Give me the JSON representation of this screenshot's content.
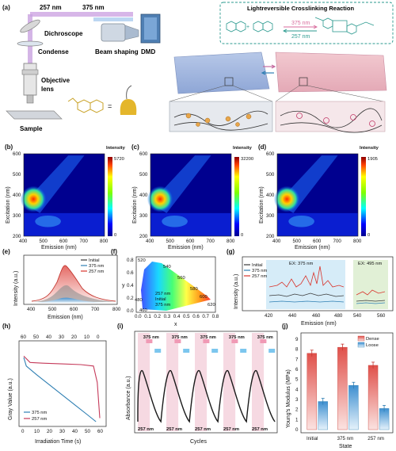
{
  "panel_a": {
    "label": "(a)",
    "wl_257": "257 nm",
    "wl_375": "375 nm",
    "dichroscope": "Dichroscope",
    "condense": "Condense",
    "beam_shaping": "Beam shaping",
    "dmd": "DMD",
    "objective_1": "Objective",
    "objective_2": "lens",
    "sample": "Sample",
    "equals": "=",
    "reaction_title": "Lightreversible Crosslinking Reaction",
    "reaction_375": "375 nm",
    "reaction_257": "257 nm",
    "plus": "+"
  },
  "heatmaps": [
    {
      "label": "(b)",
      "max": "5720",
      "zero": "0"
    },
    {
      "label": "(c)",
      "max": "32200",
      "zero": "0"
    },
    {
      "label": "(d)",
      "max": "1905",
      "zero": "0"
    }
  ],
  "heatmap_common": {
    "cbar_title": "Intensity",
    "xlabel": "Emission (nm)",
    "ylabel": "Excitation (nm)",
    "xticks": [
      "400",
      "500",
      "600",
      "700",
      "800"
    ],
    "yticks": [
      "200",
      "300",
      "400",
      "500",
      "600"
    ]
  },
  "panel_e": {
    "label": "(e)",
    "xlabel": "Emission (nm)",
    "ylabel": "Intensity (a.u.)",
    "xticks": [
      "400",
      "500",
      "600",
      "700",
      "800"
    ],
    "legend": [
      "Initial",
      "375 nm",
      "257 nm"
    ]
  },
  "panel_f": {
    "label": "(f)",
    "xlabel": "x",
    "ylabel": "y",
    "xticks": [
      "0.0",
      "0.1",
      "0.2",
      "0.3",
      "0.4",
      "0.5",
      "0.6",
      "0.7",
      "0.8"
    ],
    "yticks": [
      "0.0",
      "0.2",
      "0.4",
      "0.6",
      "0.8"
    ],
    "wl_labels": [
      "520",
      "540",
      "560",
      "580",
      "600",
      "620",
      "480",
      "460"
    ],
    "point_labels": [
      "257 nm",
      "Initial",
      "375 nm"
    ]
  },
  "panel_g": {
    "label": "(g)",
    "xlabel": "Emission (nm)",
    "ylabel": "Intensity (a.u.)",
    "xticks": [
      "420",
      "440",
      "460",
      "480",
      "540",
      "560"
    ],
    "legend": [
      "Initial",
      "375 nm",
      "257 nm"
    ],
    "ex1": "EX: 375 nm",
    "ex2": "EX: 495 nm"
  },
  "panel_h": {
    "label": "(h)",
    "xlabel": "Irradiation Time (s)",
    "ylabel": "Gray Value (a.u.)",
    "xticks": [
      "0",
      "10",
      "20",
      "30",
      "40",
      "50",
      "60"
    ],
    "top_ticks": [
      "60",
      "50",
      "40",
      "30",
      "20",
      "10",
      "0"
    ],
    "legend": [
      "375 nm",
      "257 nm"
    ]
  },
  "panel_i": {
    "label": "(i)",
    "xlabel": "Cycles",
    "ylabel": "Absorbance (a.u.)",
    "top": [
      "375 nm",
      "375 nm",
      "375 nm",
      "375 nm",
      "375 nm"
    ],
    "bottom": [
      "257 nm",
      "257 nm",
      "257 nm",
      "257 nm",
      "257 nm"
    ]
  },
  "panel_j": {
    "label": "(j)",
    "xlabel": "State",
    "ylabel": "Young's Modulus (MPa)",
    "yticks": [
      "0",
      "1",
      "2",
      "3",
      "4",
      "5",
      "6",
      "7",
      "8",
      "9"
    ],
    "legend": [
      "Dense",
      "Loose"
    ]
  },
  "chart_data": [
    {
      "type": "bar",
      "title": "",
      "xlabel": "State",
      "ylabel": "Young's Modulus (MPa)",
      "ylim": [
        0,
        9
      ],
      "categories": [
        "Initial",
        "375 nm",
        "257 nm"
      ],
      "series": [
        {
          "name": "Dense",
          "values": [
            7.6,
            8.2,
            6.4
          ]
        },
        {
          "name": "Loose",
          "values": [
            2.8,
            4.4,
            2.1
          ]
        }
      ]
    },
    {
      "type": "line",
      "xlabel": "Irradiation Time (s)",
      "ylabel": "Gray Value (a.u.)",
      "series": [
        {
          "name": "375 nm",
          "x": [
            0,
            2,
            10,
            20,
            30,
            40,
            50,
            57
          ],
          "y": [
            0.9,
            0.78,
            0.66,
            0.52,
            0.38,
            0.24,
            0.1,
            0.0
          ]
        },
        {
          "name": "257 nm",
          "x": [
            0,
            5,
            15,
            30,
            45,
            55,
            58,
            60
          ],
          "y": [
            0.92,
            0.83,
            0.82,
            0.81,
            0.8,
            0.78,
            0.55,
            0.05
          ]
        }
      ]
    }
  ],
  "colors": {
    "red": "#d9342b",
    "blue": "#2f7fb3",
    "dark": "#3a3a3a",
    "pink": "#f3c6d2",
    "cyan": "#bfe4f5"
  }
}
